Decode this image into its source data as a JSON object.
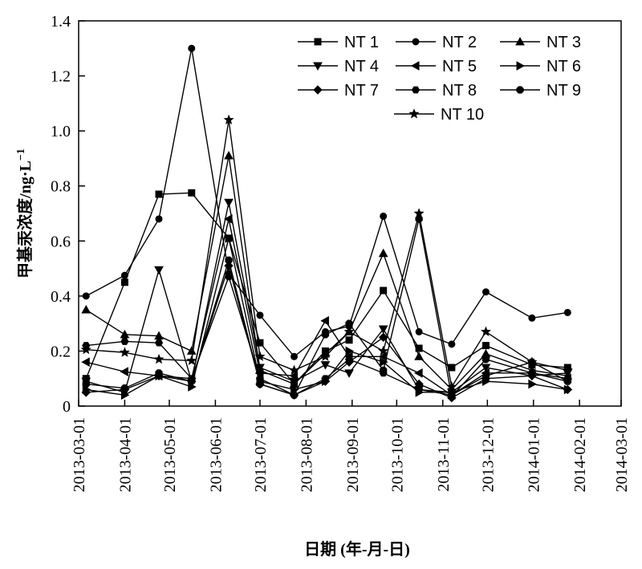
{
  "chart_data": {
    "type": "line",
    "title": "",
    "xlabel": "日期 (年-月-日)",
    "ylabel": "甲基汞浓度/ng·L",
    "ylabel_sup": "−1",
    "ylim": [
      0,
      1.4
    ],
    "yticks": [
      0,
      0.2,
      0.4,
      0.6,
      0.8,
      1.0,
      1.2,
      1.4
    ],
    "ytick_labels": [
      "0",
      "0.2",
      "0.4",
      "0.6",
      "0.8",
      "1.0",
      "1.2",
      "1.4"
    ],
    "xlim": [
      "2013-03-01",
      "2014-03-01"
    ],
    "xticks": [
      "2013-03-01",
      "2013-04-01",
      "2013-05-01",
      "2013-06-01",
      "2013-07-01",
      "2013-08-01",
      "2013-09-01",
      "2013-10-01",
      "2013-11-01",
      "2013-12-01",
      "2014-01-01",
      "2014-02-01",
      "2014-03-01"
    ],
    "x": [
      "2013-03-06",
      "2013-04-01",
      "2013-04-24",
      "2013-05-16",
      "2013-06-10",
      "2013-07-01",
      "2013-07-24",
      "2013-08-14",
      "2013-08-30",
      "2013-09-22",
      "2013-10-16",
      "2013-11-07",
      "2013-11-30",
      "2013-12-31",
      "2014-01-24"
    ],
    "legend_position": "top-right",
    "grid": false,
    "line_color": "#000000",
    "series": [
      {
        "name": "NT 1",
        "marker": "square",
        "values": [
          0.1,
          0.45,
          0.77,
          0.775,
          0.61,
          0.23,
          0.08,
          0.2,
          0.24,
          0.42,
          0.21,
          0.14,
          0.22,
          0.15,
          0.14
        ]
      },
      {
        "name": "NT 2",
        "marker": "circle",
        "values": [
          0.4,
          0.475,
          0.68,
          1.3,
          0.48,
          0.33,
          0.18,
          0.27,
          0.29,
          0.69,
          0.27,
          0.225,
          0.415,
          0.32,
          0.34
        ]
      },
      {
        "name": "NT 3",
        "marker": "triangle-up",
        "values": [
          0.35,
          0.26,
          0.255,
          0.2,
          0.91,
          0.13,
          0.08,
          0.19,
          0.27,
          0.555,
          0.18,
          0.06,
          0.19,
          0.13,
          0.11
        ]
      },
      {
        "name": "NT 4",
        "marker": "triangle-down",
        "values": [
          0.09,
          0.05,
          0.495,
          0.09,
          0.74,
          0.14,
          0.09,
          0.15,
          0.12,
          0.28,
          0.06,
          0.05,
          0.14,
          0.11,
          0.12
        ]
      },
      {
        "name": "NT 5",
        "marker": "triangle-left",
        "values": [
          0.16,
          0.125,
          0.11,
          0.1,
          0.68,
          0.12,
          0.11,
          0.31,
          0.18,
          0.18,
          0.12,
          0.04,
          0.12,
          0.12,
          0.1
        ]
      },
      {
        "name": "NT 6",
        "marker": "triangle-right",
        "values": [
          0.06,
          0.04,
          0.11,
          0.07,
          0.61,
          0.09,
          0.06,
          0.09,
          0.2,
          0.16,
          0.05,
          0.05,
          0.09,
          0.08,
          0.06
        ]
      },
      {
        "name": "NT 7",
        "marker": "diamond",
        "values": [
          0.05,
          0.06,
          0.11,
          0.09,
          0.51,
          0.08,
          0.04,
          0.09,
          0.16,
          0.25,
          0.08,
          0.03,
          0.1,
          0.11,
          0.06
        ]
      },
      {
        "name": "NT 8",
        "marker": "hexagon",
        "values": [
          0.22,
          0.235,
          0.23,
          0.1,
          0.47,
          0.1,
          0.04,
          0.1,
          0.17,
          0.12,
          0.06,
          0.04,
          0.11,
          0.16,
          0.09
        ]
      },
      {
        "name": "NT 9",
        "marker": "octagon",
        "values": [
          0.08,
          0.065,
          0.12,
          0.09,
          0.53,
          0.08,
          0.04,
          0.26,
          0.3,
          0.13,
          0.68,
          0.035,
          0.17,
          0.12,
          0.09
        ]
      },
      {
        "name": "NT 10",
        "marker": "star",
        "values": [
          0.205,
          0.195,
          0.17,
          0.165,
          1.04,
          0.18,
          0.13,
          0.18,
          0.27,
          0.2,
          0.7,
          0.07,
          0.27,
          0.16,
          0.13
        ]
      }
    ]
  }
}
